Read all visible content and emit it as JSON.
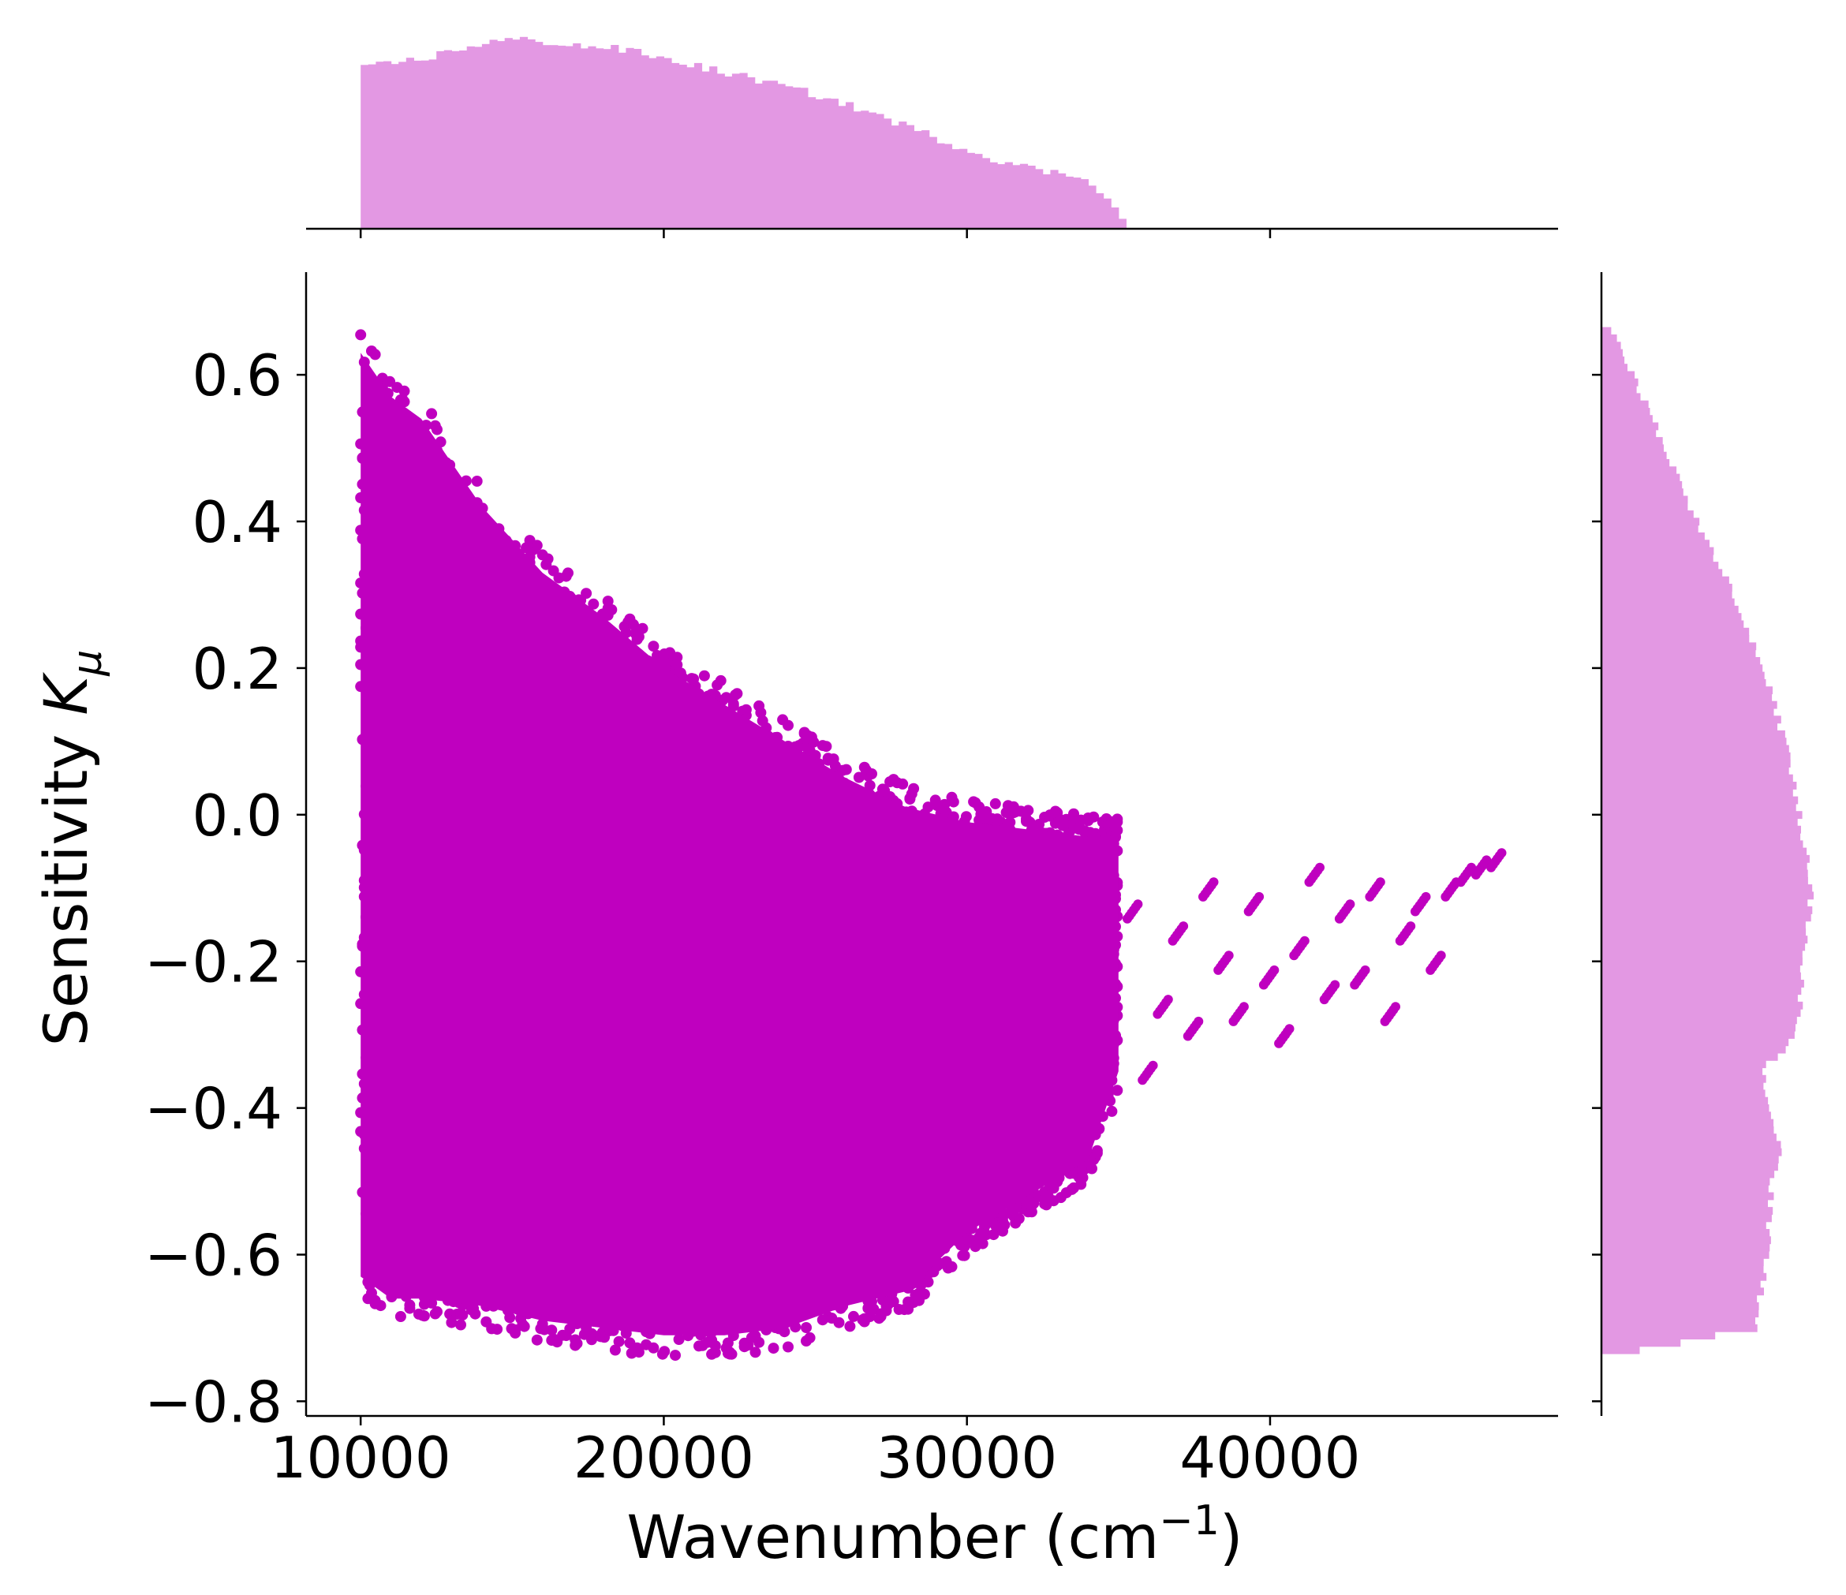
{
  "chart_data": {
    "type": "scatter",
    "title": "",
    "xlabel_main": "Wavenumber (cm",
    "xlabel_sup": "−1",
    "xlabel_end": ")",
    "ylabel_main": "Sensitivity ",
    "ylabel_sym": "K",
    "ylabel_sub": "μ",
    "xlim": [
      8200,
      49500
    ],
    "ylim": [
      -0.82,
      0.74
    ],
    "x_ticks": [
      10000,
      20000,
      30000,
      40000
    ],
    "x_tick_labels": [
      "10000",
      "20000",
      "30000",
      "40000"
    ],
    "y_ticks": [
      0.6,
      0.4,
      0.2,
      0.0,
      -0.2,
      -0.4,
      -0.6,
      -0.8
    ],
    "y_tick_labels": [
      "0.6",
      "0.4",
      "0.2",
      "0.0",
      "−0.2",
      "−0.4",
      "−0.6",
      "−0.8"
    ],
    "point_color": "#bf00bf",
    "hist_color": "#e398e3",
    "grid": false,
    "envelope": {
      "x": [
        10000,
        11000,
        12000,
        14000,
        16000,
        18000,
        20000,
        22000,
        24000,
        26000,
        28000,
        30000,
        32000,
        34000,
        35000
      ],
      "upper": [
        0.66,
        0.6,
        0.57,
        0.45,
        0.36,
        0.3,
        0.23,
        0.18,
        0.13,
        0.08,
        0.04,
        0.02,
        0.01,
        0.0,
        0.0
      ],
      "lower": [
        -0.66,
        -0.69,
        -0.69,
        -0.7,
        -0.72,
        -0.73,
        -0.74,
        -0.74,
        -0.73,
        -0.7,
        -0.68,
        -0.6,
        -0.55,
        -0.5,
        -0.38
      ]
    },
    "tail_points": [
      [
        35500,
        -0.13
      ],
      [
        36000,
        -0.35
      ],
      [
        36500,
        -0.26
      ],
      [
        37000,
        -0.16
      ],
      [
        37500,
        -0.29
      ],
      [
        38000,
        -0.1
      ],
      [
        38500,
        -0.2
      ],
      [
        39000,
        -0.27
      ],
      [
        39500,
        -0.12
      ],
      [
        40000,
        -0.22
      ],
      [
        40500,
        -0.3
      ],
      [
        41000,
        -0.18
      ],
      [
        41500,
        -0.08
      ],
      [
        42000,
        -0.24
      ],
      [
        42500,
        -0.13
      ],
      [
        43000,
        -0.22
      ],
      [
        43500,
        -0.1
      ],
      [
        44000,
        -0.27
      ],
      [
        44500,
        -0.16
      ],
      [
        45000,
        -0.12
      ],
      [
        45500,
        -0.2
      ],
      [
        46000,
        -0.1
      ],
      [
        46500,
        -0.08
      ],
      [
        47000,
        -0.07
      ],
      [
        47500,
        -0.06
      ]
    ],
    "x_histogram": {
      "bin_width": 250,
      "start": 10000,
      "end": 35250,
      "anchor_x": [
        10000,
        11000,
        12000,
        13000,
        14000,
        15000,
        16000,
        17000,
        18000,
        19000,
        20000,
        21000,
        22000,
        23000,
        24000,
        25000,
        26000,
        27000,
        28000,
        29000,
        30000,
        31000,
        32000,
        33000,
        34000,
        35000,
        35250
      ],
      "anchor_count": [
        0.81,
        0.84,
        0.86,
        0.9,
        0.94,
        0.96,
        0.95,
        0.93,
        0.92,
        0.9,
        0.86,
        0.83,
        0.79,
        0.76,
        0.72,
        0.68,
        0.63,
        0.58,
        0.52,
        0.46,
        0.4,
        0.35,
        0.31,
        0.28,
        0.26,
        0.08,
        0.0
      ]
    },
    "y_histogram": {
      "anchor_y": [
        0.66,
        0.6,
        0.5,
        0.4,
        0.3,
        0.2,
        0.1,
        0.0,
        -0.1,
        -0.2,
        -0.3,
        -0.35,
        -0.4,
        -0.45,
        -0.5,
        -0.6,
        -0.7,
        -0.74
      ],
      "anchor_count": [
        0.05,
        0.15,
        0.3,
        0.45,
        0.62,
        0.76,
        0.86,
        0.93,
        0.99,
        0.95,
        0.92,
        0.75,
        0.8,
        0.84,
        0.8,
        0.78,
        0.72,
        0.0
      ]
    }
  }
}
